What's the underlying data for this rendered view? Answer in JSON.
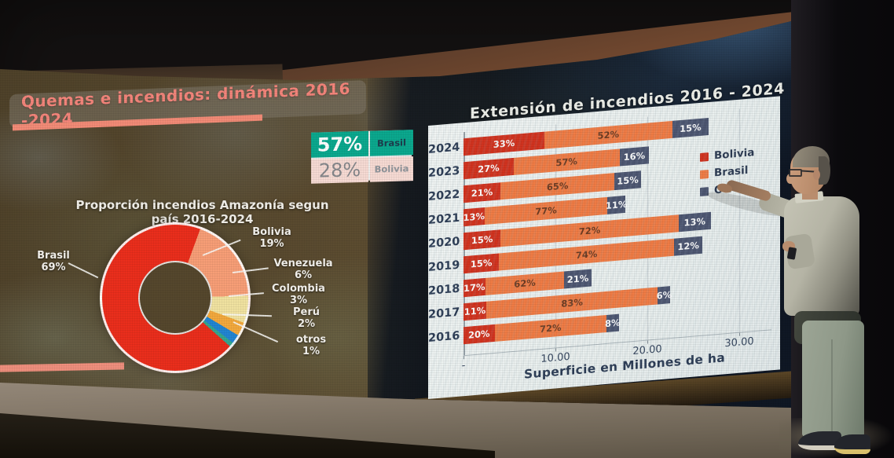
{
  "left_screen": {
    "banner_title": "Quemas e incendios: dinámica 2016 -2024",
    "stats_box": {
      "rows": [
        {
          "value": "57%",
          "label": "Brasil"
        },
        {
          "value": "28%",
          "label": "Bolivia"
        }
      ],
      "colors": {
        "top_bg": "#0ba88e",
        "bottom_bg": "#f6dad3"
      }
    }
  },
  "chart_data": [
    {
      "type": "pie",
      "donut": true,
      "title": "Proporción incendios Amazonía segun país 2016-2024",
      "title_lines": [
        "Proporción incendios Amazonía segun",
        "país 2016-2024"
      ],
      "start_angle_deg": 20,
      "slices": [
        {
          "label": "Bolivia",
          "value_pct": 19,
          "pct_text": "19%",
          "color": "#f79e77"
        },
        {
          "label": "Venezuela",
          "value_pct": 6,
          "pct_text": "6%",
          "color": "#f0e2a0"
        },
        {
          "label": "Colombia",
          "value_pct": 3,
          "pct_text": "3%",
          "color": "#f2a93d"
        },
        {
          "label": "Perú",
          "value_pct": 2,
          "pct_text": "2%",
          "color": "#2285d2"
        },
        {
          "label": "otros",
          "value_pct": 1,
          "pct_text": "1%",
          "color": "#35a78f"
        },
        {
          "label": "Brasil",
          "value_pct": 69,
          "pct_text": "69%",
          "color": "#ea2e1c"
        }
      ]
    },
    {
      "type": "bar",
      "orientation": "horizontal",
      "stacked": true,
      "title": "Extensión de incendios 2016 - 2024",
      "categories": [
        "2024",
        "2023",
        "2022",
        "2021",
        "2020",
        "2019",
        "2018",
        "2017",
        "2016"
      ],
      "series": [
        {
          "name": "Bolivia",
          "color": "#d2331f",
          "pct_by_year": [
            33,
            27,
            21,
            13,
            15,
            15,
            17,
            11,
            20
          ]
        },
        {
          "name": "Brasil",
          "color": "#f07c45",
          "pct_by_year": [
            52,
            57,
            65,
            77,
            72,
            74,
            62,
            83,
            72
          ]
        },
        {
          "name": "Otros",
          "color": "#4d5671",
          "pct_by_year": [
            15,
            16,
            15,
            11,
            13,
            12,
            21,
            6,
            8
          ]
        }
      ],
      "totals_mha_estimated": [
        26.7,
        20.2,
        19.3,
        17.6,
        26.9,
        26.0,
        13.9,
        22.5,
        16.9
      ],
      "xlabel": "Superficie en Millones de ha",
      "x_ticks": [
        {
          "value": 0,
          "label": "-"
        },
        {
          "value": 10,
          "label": "10.00"
        },
        {
          "value": 20,
          "label": "20.00"
        },
        {
          "value": 30,
          "label": "30.00"
        }
      ],
      "xlim": [
        0,
        33.5
      ],
      "gridlines": true,
      "legend_position": "right"
    }
  ]
}
